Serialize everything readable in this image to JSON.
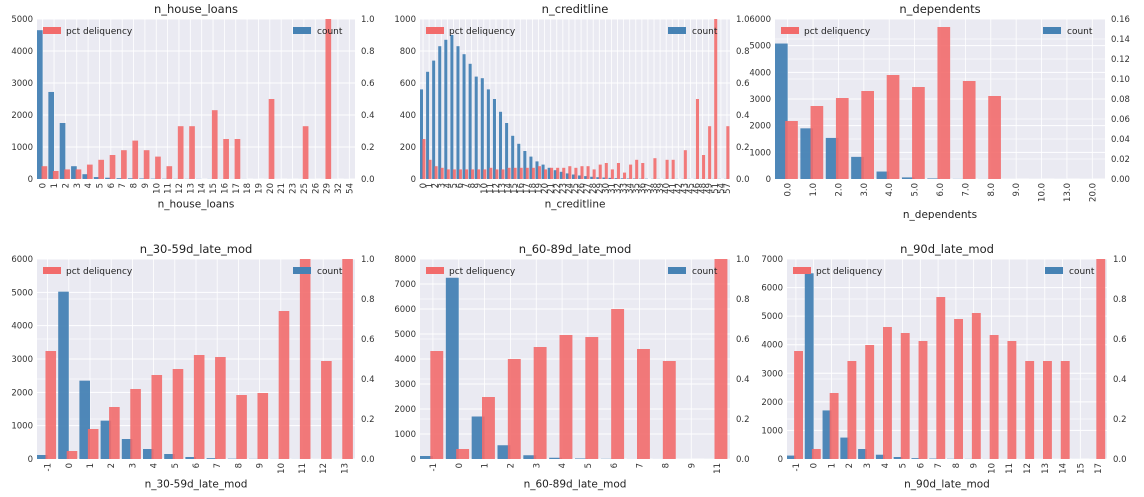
{
  "colors": {
    "count": "#4682b4",
    "pct": "#f26b6b",
    "panel_bg": "#eaeaf2",
    "grid": "#ffffff"
  },
  "legend": {
    "pct_label": "pct deliquency",
    "count_label": "count"
  },
  "chart_data": [
    {
      "type": "bar",
      "title": "n_house_loans",
      "xlabel": "n_house_loans",
      "categories": [
        "0",
        "1",
        "2",
        "3",
        "4",
        "5",
        "6",
        "7",
        "8",
        "9",
        "10",
        "11",
        "12",
        "13",
        "14",
        "15",
        "16",
        "17",
        "18",
        "19",
        "20",
        "21",
        "23",
        "25",
        "26",
        "29",
        "32",
        "54"
      ],
      "series": [
        {
          "name": "count",
          "axis": "left",
          "values": [
            4650,
            2720,
            1750,
            400,
            150,
            60,
            40,
            25,
            20,
            15,
            10,
            8,
            6,
            5,
            4,
            3,
            3,
            2,
            2,
            1,
            1,
            1,
            1,
            1,
            1,
            1,
            1,
            1
          ]
        },
        {
          "name": "pct deliquency",
          "axis": "right",
          "values": [
            0.08,
            0.05,
            0.06,
            0.06,
            0.09,
            0.12,
            0.15,
            0.18,
            0.24,
            0.18,
            0.14,
            0.08,
            0.33,
            0.33,
            0,
            0.43,
            0.25,
            0.25,
            0,
            0,
            0.5,
            0,
            0,
            0.33,
            0,
            1.0,
            0,
            0
          ]
        }
      ],
      "ylim_left": [
        0,
        5000
      ],
      "yticks_left": [
        0,
        1000,
        2000,
        3000,
        4000,
        5000
      ],
      "ylim_right": [
        0,
        1.0
      ],
      "yticks_right": [
        "0.0",
        "0.2",
        "0.4",
        "0.6",
        "0.8",
        "1.0"
      ],
      "grid": true
    },
    {
      "type": "bar",
      "title": "n_creditline",
      "xlabel": "n_creditline",
      "categories": [
        "0",
        "1",
        "2",
        "3",
        "4",
        "5",
        "6",
        "7",
        "8",
        "9",
        "10",
        "11",
        "12",
        "13",
        "14",
        "15",
        "16",
        "17",
        "18",
        "19",
        "20",
        "21",
        "22",
        "23",
        "24",
        "25",
        "26",
        "27",
        "28",
        "29",
        "30",
        "31",
        "32",
        "33",
        "34",
        "35",
        "36",
        "37",
        "38",
        "39",
        "40",
        "41",
        "42",
        "43",
        "45",
        "46",
        "48",
        "49",
        "51",
        "54",
        "57"
      ],
      "series": [
        {
          "name": "count",
          "axis": "left",
          "values": [
            560,
            670,
            740,
            830,
            870,
            900,
            830,
            780,
            720,
            640,
            630,
            560,
            500,
            420,
            350,
            270,
            220,
            175,
            140,
            110,
            90,
            70,
            55,
            45,
            35,
            28,
            22,
            18,
            14,
            11,
            9,
            7,
            5,
            4,
            3,
            3,
            2,
            2,
            1,
            1,
            1,
            1,
            1,
            1,
            1,
            1,
            1,
            1,
            1,
            1,
            1
          ]
        },
        {
          "name": "pct deliquency",
          "axis": "right",
          "values": [
            0.25,
            0.12,
            0.08,
            0.07,
            0.06,
            0.06,
            0.06,
            0.06,
            0.06,
            0.06,
            0.06,
            0.07,
            0.06,
            0.06,
            0.07,
            0.07,
            0.07,
            0.07,
            0.07,
            0.08,
            0.06,
            0.07,
            0.07,
            0.07,
            0.08,
            0.07,
            0.08,
            0.08,
            0.06,
            0.09,
            0.1,
            0.06,
            0.1,
            0.04,
            0.09,
            0.12,
            0.1,
            0,
            0.13,
            0,
            0.12,
            0.12,
            0,
            0.18,
            0,
            0.5,
            0.15,
            0.33,
            1.0,
            0,
            0.33
          ]
        }
      ],
      "ylim_left": [
        0,
        1000
      ],
      "yticks_left": [
        0,
        200,
        400,
        600,
        800,
        1000
      ],
      "ylim_right": [
        0,
        1.0
      ],
      "yticks_right": [
        "0.0",
        "0.2",
        "0.4",
        "0.6",
        "0.8",
        "1.0"
      ],
      "grid": true
    },
    {
      "type": "bar",
      "title": "n_dependents",
      "xlabel": "n_dependents",
      "categories": [
        "0.0",
        "1.0",
        "2.0",
        "3.0",
        "4.0",
        "5.0",
        "6.0",
        "7.0",
        "8.0",
        "9.0",
        "10.0",
        "13.0",
        "20.0"
      ],
      "series": [
        {
          "name": "count",
          "axis": "left",
          "values": [
            5080,
            1900,
            1540,
            830,
            280,
            60,
            20,
            5,
            3,
            1,
            1,
            1,
            1
          ]
        },
        {
          "name": "pct deliquency",
          "axis": "right",
          "values": [
            0.058,
            0.073,
            0.081,
            0.088,
            0.104,
            0.092,
            0.152,
            0.098,
            0.083,
            0,
            0,
            0,
            0
          ]
        }
      ],
      "ylim_left": [
        0,
        6000
      ],
      "yticks_left": [
        0,
        1000,
        2000,
        3000,
        4000,
        5000,
        6000
      ],
      "ylim_right": [
        0,
        0.16
      ],
      "yticks_right": [
        "0.00",
        "0.02",
        "0.04",
        "0.06",
        "0.08",
        "0.10",
        "0.12",
        "0.14",
        "0.16"
      ],
      "grid": true
    },
    {
      "type": "bar",
      "title": "n_30-59d_late_mod",
      "xlabel": "n_30-59d_late_mod",
      "categories": [
        "-1",
        "0",
        "1",
        "2",
        "3",
        "4",
        "5",
        "6",
        "7",
        "8",
        "9",
        "10",
        "11",
        "12",
        "13"
      ],
      "series": [
        {
          "name": "count",
          "axis": "left",
          "values": [
            120,
            5020,
            2350,
            1150,
            600,
            300,
            150,
            60,
            25,
            10,
            5,
            3,
            2,
            1,
            1
          ]
        },
        {
          "name": "pct deliquency",
          "axis": "right",
          "values": [
            0.54,
            0.04,
            0.15,
            0.26,
            0.35,
            0.42,
            0.45,
            0.52,
            0.51,
            0.32,
            0.33,
            0.74,
            1.0,
            0.49,
            1.0
          ]
        }
      ],
      "ylim_left": [
        0,
        6000
      ],
      "yticks_left": [
        0,
        1000,
        2000,
        3000,
        4000,
        5000,
        6000
      ],
      "ylim_right": [
        0,
        1.0
      ],
      "yticks_right": [
        "0.0",
        "0.2",
        "0.4",
        "0.6",
        "0.8",
        "1.0"
      ],
      "grid": true
    },
    {
      "type": "bar",
      "title": "n_60-89d_late_mod",
      "xlabel": "n_60-89d_late_mod",
      "categories": [
        "-1",
        "0",
        "1",
        "2",
        "3",
        "4",
        "5",
        "6",
        "7",
        "8",
        "9",
        "11"
      ],
      "series": [
        {
          "name": "count",
          "axis": "left",
          "values": [
            120,
            7250,
            1700,
            550,
            150,
            50,
            20,
            8,
            3,
            2,
            1,
            1
          ]
        },
        {
          "name": "pct deliquency",
          "axis": "right",
          "values": [
            0.54,
            0.05,
            0.31,
            0.5,
            0.56,
            0.62,
            0.61,
            0.75,
            0.55,
            0.49,
            0,
            1.0
          ]
        }
      ],
      "ylim_left": [
        0,
        8000
      ],
      "yticks_left": [
        0,
        1000,
        2000,
        3000,
        4000,
        5000,
        6000,
        7000,
        8000
      ],
      "ylim_right": [
        0,
        1.0
      ],
      "yticks_right": [
        "0.0",
        "0.2",
        "0.4",
        "0.6",
        "0.8",
        "1.0"
      ],
      "grid": true
    },
    {
      "type": "bar",
      "title": "n_90d_late_mod",
      "xlabel": "n_90d_late_mod",
      "categories": [
        "-1",
        "0",
        "1",
        "2",
        "3",
        "4",
        "5",
        "6",
        "7",
        "8",
        "9",
        "10",
        "11",
        "12",
        "13",
        "14",
        "15",
        "17"
      ],
      "series": [
        {
          "name": "count",
          "axis": "left",
          "values": [
            120,
            6500,
            1700,
            750,
            350,
            150,
            70,
            30,
            15,
            8,
            5,
            3,
            2,
            2,
            1,
            1,
            1,
            1
          ]
        },
        {
          "name": "pct deliquency",
          "axis": "right",
          "values": [
            0.54,
            0.05,
            0.33,
            0.49,
            0.57,
            0.66,
            0.63,
            0.59,
            0.81,
            0.7,
            0.73,
            0.62,
            0.59,
            0.49,
            0.49,
            0.49,
            0,
            1.0
          ]
        }
      ],
      "ylim_left": [
        0,
        7000
      ],
      "yticks_left": [
        0,
        1000,
        2000,
        3000,
        4000,
        5000,
        6000,
        7000
      ],
      "ylim_right": [
        0,
        1.0
      ],
      "yticks_right": [
        "0.0",
        "0.2",
        "0.4",
        "0.6",
        "0.8",
        "1.0"
      ],
      "grid": true
    }
  ]
}
